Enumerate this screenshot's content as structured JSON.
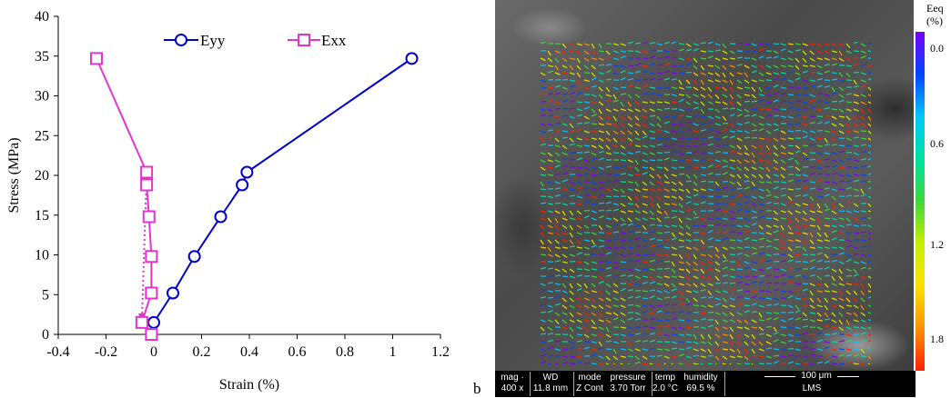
{
  "chart_data": {
    "type": "scatter",
    "xlabel": "Strain (%)",
    "ylabel": "Stress (MPa)",
    "xlim": [
      -0.4,
      1.2
    ],
    "ylim": [
      0,
      40
    ],
    "xticks": [
      "-0.4",
      "-0.2",
      "0",
      "0.2",
      "0.4",
      "0.6",
      "0.8",
      "1",
      "1.2"
    ],
    "yticks": [
      "0",
      "5",
      "10",
      "15",
      "20",
      "25",
      "30",
      "35",
      "40"
    ],
    "legend_position": "top-right",
    "series": [
      {
        "name": "Eyy",
        "marker": "circle",
        "color": "#0000cc",
        "x": [
          0.0,
          0.08,
          0.17,
          0.28,
          0.37,
          0.39,
          1.08
        ],
        "y": [
          1.5,
          5.2,
          9.8,
          14.8,
          18.8,
          20.4,
          34.7
        ]
      },
      {
        "name": "Exx",
        "marker": "square",
        "color": "#e633cc",
        "x": [
          -0.01,
          -0.05,
          -0.01,
          -0.01,
          -0.02,
          -0.03,
          -0.03,
          -0.24
        ],
        "y": [
          0.0,
          1.5,
          5.2,
          9.8,
          14.8,
          18.8,
          20.4,
          34.7
        ]
      }
    ]
  },
  "panel_label": "b",
  "sem_image": {
    "colorbar": {
      "title_line1": "Eeq",
      "title_line2": "(%)",
      "ticks": [
        "0.0",
        "0.6",
        "1.2",
        "1.8"
      ],
      "colors": [
        "#7a00ff",
        "#0044ff",
        "#00c8ff",
        "#00e0a0",
        "#3ad93a",
        "#c8f000",
        "#ffe000",
        "#ff9000",
        "#ff2000"
      ]
    },
    "databar": {
      "mag_label": "mag",
      "mag_value": "400 x",
      "wd_label": "WD",
      "wd_value": "11.8 mm",
      "mode_label": "mode",
      "mode_value": "Z Cont",
      "pressure_label": "pressure",
      "pressure_value": "3.70 Torr",
      "temp_label": "temp",
      "temp_value": "2.0 °C",
      "humidity_label": "humidity",
      "humidity_value": "69.5 %",
      "scale_value": "100 μm",
      "lab_value": "LMS"
    }
  }
}
